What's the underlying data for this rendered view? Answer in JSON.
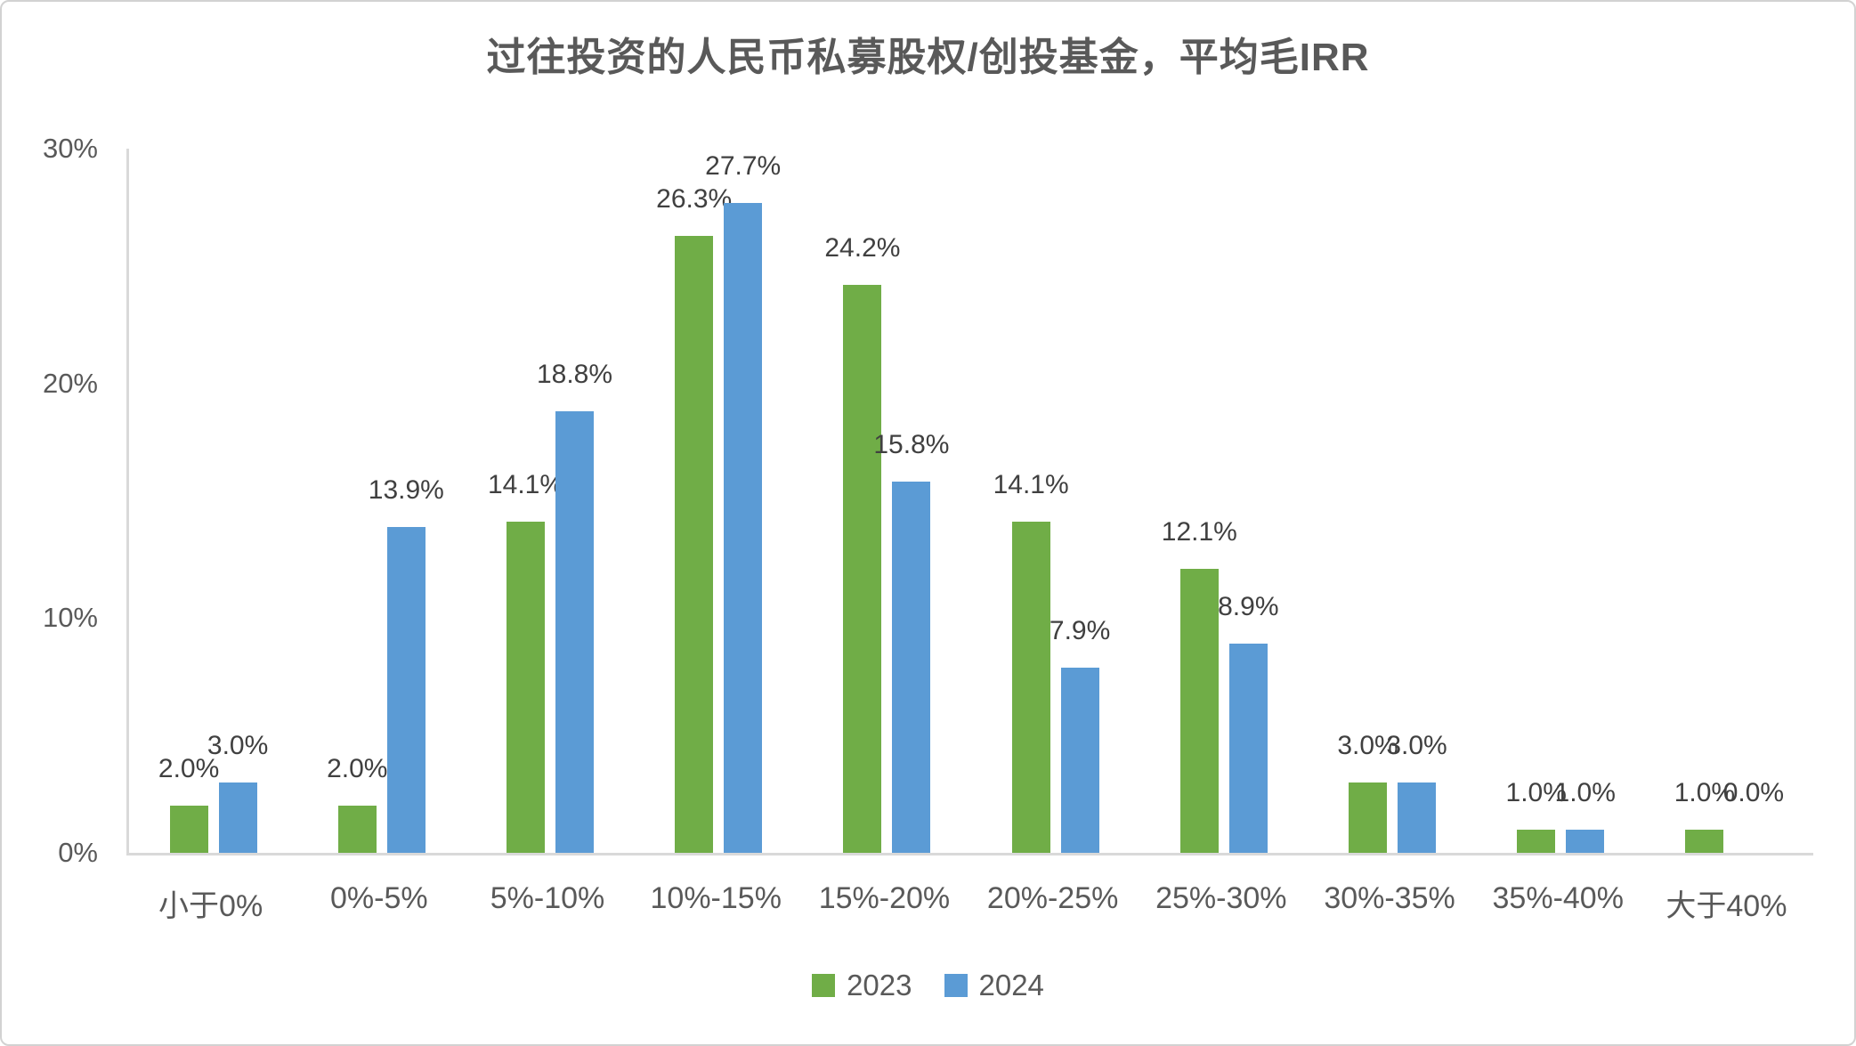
{
  "title": "过往投资的人民币私募股权/创投基金，平均毛IRR",
  "colors": {
    "series_2023": "#70AD47",
    "series_2024": "#5B9BD5",
    "axis_line": "#D9D9D9",
    "title_text": "#595959",
    "tick_text": "#595959",
    "data_label_text": "#404040",
    "frame_border": "#D2D2D2",
    "background": "#FFFFFF"
  },
  "y_axis": {
    "ticks": [
      {
        "label": "0%",
        "value": 0
      },
      {
        "label": "10%",
        "value": 10
      },
      {
        "label": "20%",
        "value": 20
      },
      {
        "label": "30%",
        "value": 30
      }
    ]
  },
  "legend": [
    {
      "label": "2023",
      "color": "#70AD47"
    },
    {
      "label": "2024",
      "color": "#5B9BD5"
    }
  ],
  "chart_data": {
    "type": "bar",
    "title": "过往投资的人民币私募股权/创投基金，平均毛IRR",
    "xlabel": "",
    "ylabel": "",
    "ylim": [
      0,
      30
    ],
    "grid": false,
    "legend_position": "bottom",
    "categories": [
      "小于0%",
      "0%-5%",
      "5%-10%",
      "10%-15%",
      "15%-20%",
      "20%-25%",
      "25%-30%",
      "30%-35%",
      "35%-40%",
      "大于40%"
    ],
    "series": [
      {
        "name": "2023",
        "color": "#70AD47",
        "values": [
          2.0,
          2.0,
          14.1,
          26.3,
          24.2,
          14.1,
          12.1,
          3.0,
          1.0,
          1.0
        ],
        "labels": [
          "2.0%",
          "2.0%",
          "14.1%",
          "26.3%",
          "24.2%",
          "14.1%",
          "12.1%",
          "3.0%",
          "1.0%",
          "1.0%"
        ]
      },
      {
        "name": "2024",
        "color": "#5B9BD5",
        "values": [
          3.0,
          13.9,
          18.8,
          27.7,
          15.8,
          7.9,
          8.9,
          3.0,
          1.0,
          0.0
        ],
        "labels": [
          "3.0%",
          "13.9%",
          "18.8%",
          "27.7%",
          "15.8%",
          "7.9%",
          "8.9%",
          "3.0%",
          "1.0%",
          "0.0%"
        ]
      }
    ]
  }
}
